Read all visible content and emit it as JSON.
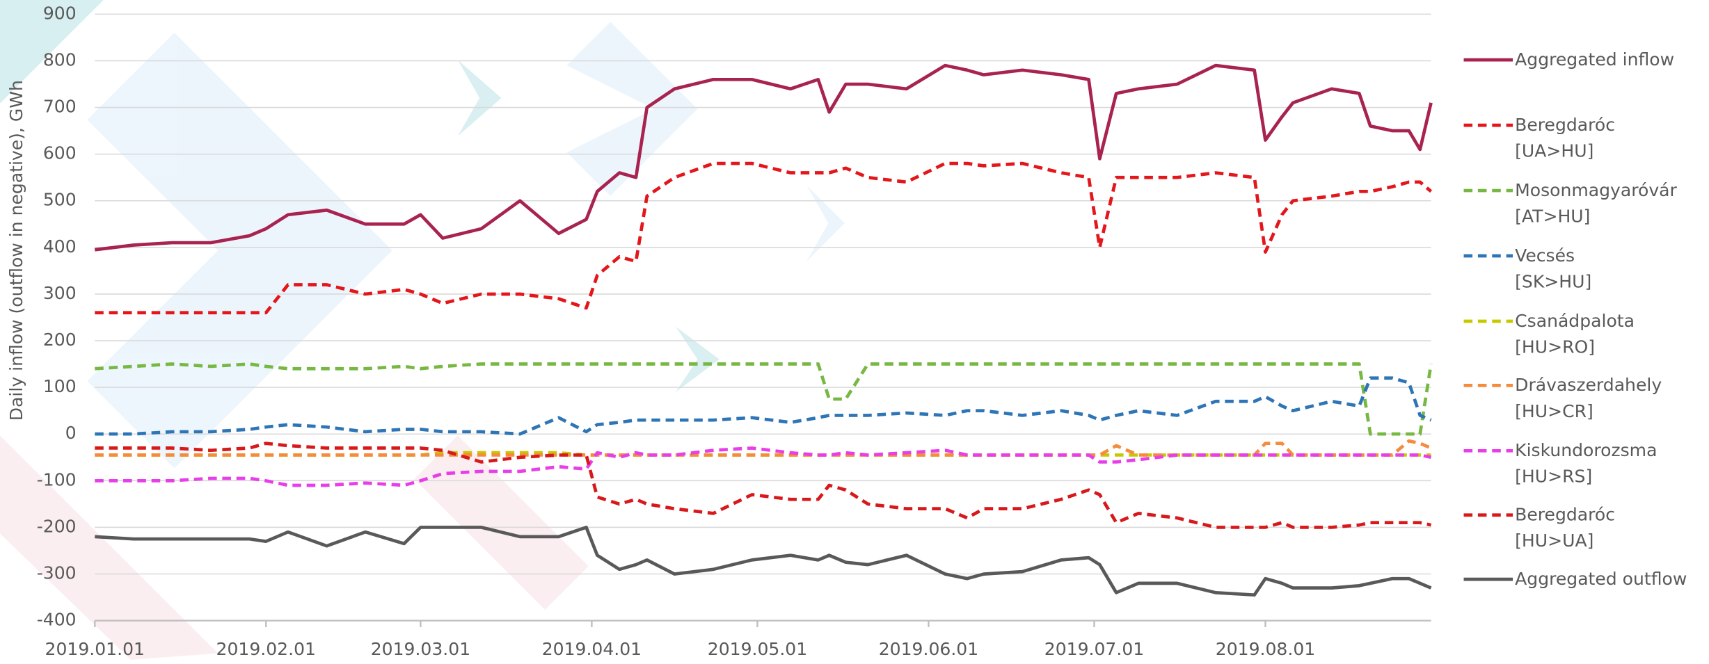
{
  "chart_data": {
    "type": "line",
    "y_label": "Daily inflow (outflow in negative), GWh",
    "x": [
      "2019.01.01",
      "2019.01.08",
      "2019.01.15",
      "2019.01.22",
      "2019.01.29",
      "2019.02.01",
      "2019.02.05",
      "2019.02.12",
      "2019.02.19",
      "2019.02.26",
      "2019.03.01",
      "2019.03.05",
      "2019.03.12",
      "2019.03.19",
      "2019.03.26",
      "2019.03.31",
      "2019.04.02",
      "2019.04.06",
      "2019.04.09",
      "2019.04.11",
      "2019.04.16",
      "2019.04.23",
      "2019.04.30",
      "2019.05.07",
      "2019.05.12",
      "2019.05.14",
      "2019.05.17",
      "2019.05.21",
      "2019.05.28",
      "2019.06.04",
      "2019.06.08",
      "2019.06.11",
      "2019.06.18",
      "2019.06.25",
      "2019.06.30",
      "2019.07.02",
      "2019.07.05",
      "2019.07.09",
      "2019.07.16",
      "2019.07.23",
      "2019.07.30",
      "2019.08.01",
      "2019.08.04",
      "2019.08.06",
      "2019.08.13",
      "2019.08.18",
      "2019.08.20",
      "2019.08.24",
      "2019.08.27",
      "2019.08.29",
      "2019.08.31"
    ],
    "xlim": [
      "2019.01.01",
      "2019.08.31"
    ],
    "xticks": [
      "2019.01.01",
      "2019.02.01",
      "2019.03.01",
      "2019.04.01",
      "2019.05.01",
      "2019.06.01",
      "2019.07.01",
      "2019.08.01"
    ],
    "ylim": [
      -400,
      900
    ],
    "yticks": [
      -400,
      -300,
      -200,
      -100,
      0,
      100,
      200,
      300,
      400,
      500,
      600,
      700,
      800,
      900
    ],
    "grid": true,
    "legend": "right",
    "series": [
      {
        "name": "Aggregated inflow",
        "color": "#a8234f",
        "dash": false,
        "values": [
          395,
          405,
          410,
          410,
          425,
          440,
          470,
          480,
          450,
          450,
          470,
          420,
          440,
          500,
          430,
          460,
          520,
          560,
          550,
          700,
          740,
          760,
          760,
          740,
          760,
          690,
          750,
          750,
          740,
          790,
          780,
          770,
          780,
          770,
          760,
          590,
          730,
          740,
          750,
          790,
          780,
          630,
          680,
          710,
          740,
          730,
          660,
          650,
          650,
          610,
          710
        ]
      },
      {
        "name": "Beregdaróc\n[UA>HU]",
        "color": "#e3161b",
        "dash": true,
        "values": [
          260,
          260,
          260,
          260,
          260,
          260,
          320,
          320,
          300,
          310,
          300,
          280,
          300,
          300,
          290,
          270,
          340,
          380,
          370,
          510,
          550,
          580,
          580,
          560,
          560,
          560,
          570,
          550,
          540,
          580,
          580,
          575,
          580,
          560,
          550,
          400,
          550,
          550,
          550,
          560,
          550,
          390,
          470,
          500,
          510,
          520,
          520,
          530,
          540,
          540,
          520
        ]
      },
      {
        "name": "Mosonmagyaróvár\n[AT>HU]",
        "color": "#77b843",
        "dash": true,
        "values": [
          140,
          145,
          150,
          145,
          150,
          145,
          140,
          140,
          140,
          145,
          140,
          145,
          150,
          150,
          150,
          150,
          150,
          150,
          150,
          150,
          150,
          150,
          150,
          150,
          150,
          75,
          75,
          150,
          150,
          150,
          150,
          150,
          150,
          150,
          150,
          150,
          150,
          150,
          150,
          150,
          150,
          150,
          150,
          150,
          150,
          150,
          0,
          0,
          0,
          0,
          150
        ]
      },
      {
        "name": "Vecsés\n[SK>HU]",
        "color": "#2e75b6",
        "dash": true,
        "values": [
          0,
          0,
          5,
          5,
          10,
          15,
          20,
          15,
          5,
          10,
          10,
          5,
          5,
          0,
          35,
          5,
          20,
          25,
          30,
          30,
          30,
          30,
          35,
          25,
          35,
          40,
          40,
          40,
          45,
          40,
          50,
          50,
          40,
          50,
          40,
          30,
          40,
          50,
          40,
          70,
          70,
          80,
          60,
          50,
          70,
          60,
          120,
          120,
          110,
          40,
          30
        ]
      },
      {
        "name": "Csanádpalota\n[HU>RO]",
        "color": "#c8c800",
        "dash": true,
        "values": [
          -45,
          -45,
          -45,
          -45,
          -45,
          -45,
          -45,
          -45,
          -45,
          -45,
          -45,
          -40,
          -40,
          -40,
          -40,
          -45,
          -45,
          -45,
          -45,
          -45,
          -45,
          -45,
          -45,
          -45,
          -45,
          -45,
          -45,
          -45,
          -45,
          -45,
          -45,
          -45,
          -45,
          -45,
          -45,
          -45,
          -45,
          -45,
          -45,
          -45,
          -45,
          -45,
          -45,
          -45,
          -45,
          -45,
          -45,
          -45,
          -45,
          -45,
          -45
        ]
      },
      {
        "name": "Drávaszerdahely\n[HU>CR]",
        "color": "#f58b3d",
        "dash": true,
        "values": [
          -45,
          -45,
          -45,
          -45,
          -45,
          -45,
          -45,
          -45,
          -45,
          -45,
          -45,
          -45,
          -45,
          -45,
          -45,
          -45,
          -45,
          -45,
          -45,
          -45,
          -45,
          -45,
          -45,
          -45,
          -45,
          -45,
          -45,
          -45,
          -45,
          -45,
          -45,
          -45,
          -45,
          -45,
          -45,
          -45,
          -25,
          -45,
          -45,
          -45,
          -45,
          -20,
          -20,
          -45,
          -45,
          -45,
          -45,
          -45,
          -15,
          -20,
          -30
        ]
      },
      {
        "name": "Kiskundorozsma\n[HU>RS]",
        "color": "#e83ee8",
        "dash": true,
        "values": [
          -100,
          -100,
          -100,
          -95,
          -95,
          -100,
          -110,
          -110,
          -105,
          -110,
          -100,
          -85,
          -80,
          -80,
          -70,
          -75,
          -40,
          -50,
          -40,
          -45,
          -45,
          -35,
          -30,
          -40,
          -45,
          -45,
          -40,
          -45,
          -40,
          -35,
          -45,
          -45,
          -45,
          -45,
          -45,
          -60,
          -60,
          -55,
          -45,
          -45,
          -45,
          -45,
          -45,
          -45,
          -45,
          -45,
          -45,
          -45,
          -45,
          -45,
          -50
        ]
      },
      {
        "name": "Beregdaróc\n[HU>UA]",
        "color": "#d7191c",
        "dash": true,
        "values": [
          -30,
          -30,
          -30,
          -35,
          -30,
          -20,
          -25,
          -30,
          -30,
          -30,
          -30,
          -35,
          -60,
          -50,
          -45,
          -45,
          -135,
          -150,
          -140,
          -150,
          -160,
          -170,
          -130,
          -140,
          -140,
          -110,
          -120,
          -150,
          -160,
          -160,
          -180,
          -160,
          -160,
          -140,
          -120,
          -130,
          -190,
          -170,
          -180,
          -200,
          -200,
          -200,
          -190,
          -200,
          -200,
          -195,
          -190,
          -190,
          -190,
          -190,
          -195
        ]
      },
      {
        "name": "Aggregated outflow",
        "color": "#595959",
        "dash": false,
        "values": [
          -220,
          -225,
          -225,
          -225,
          -225,
          -230,
          -210,
          -240,
          -210,
          -235,
          -200,
          -200,
          -200,
          -220,
          -220,
          -200,
          -260,
          -290,
          -280,
          -270,
          -300,
          -290,
          -270,
          -260,
          -270,
          -260,
          -275,
          -280,
          -260,
          -300,
          -310,
          -300,
          -295,
          -270,
          -265,
          -280,
          -340,
          -320,
          -320,
          -340,
          -345,
          -310,
          -320,
          -330,
          -330,
          -325,
          -320,
          -310,
          -310,
          -320,
          -330
        ]
      }
    ]
  }
}
